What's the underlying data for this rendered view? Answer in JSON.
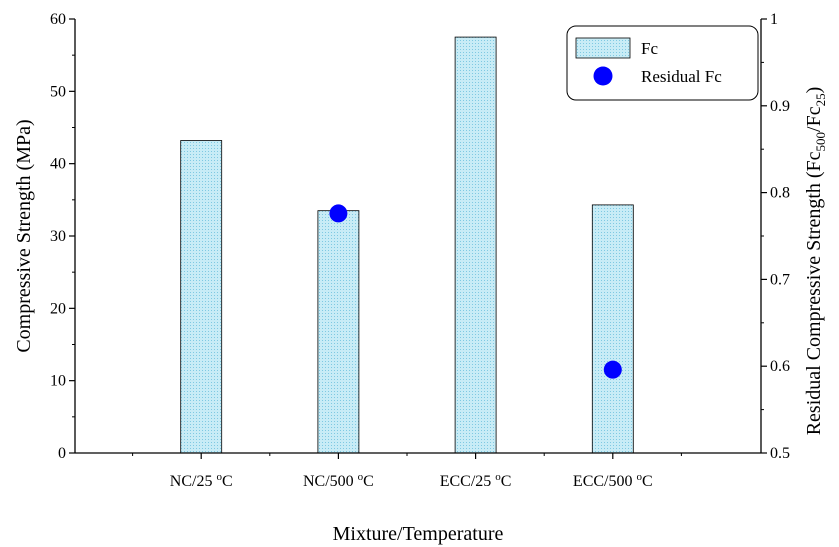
{
  "chart_data": {
    "type": "bar",
    "categories": [
      {
        "base": "NC/25 ",
        "sup": "o",
        "tail": "C"
      },
      {
        "base": "NC/500 ",
        "sup": "o",
        "tail": "C"
      },
      {
        "base": "ECC/25 ",
        "sup": "o",
        "tail": "C"
      },
      {
        "base": "ECC/500 ",
        "sup": "o",
        "tail": "C"
      }
    ],
    "series": [
      {
        "name": "Fc",
        "axis": "left",
        "kind": "bar",
        "values": [
          43.2,
          33.5,
          57.5,
          34.3
        ]
      },
      {
        "name": "Residual Fc",
        "axis": "right",
        "kind": "scatter",
        "values": [
          null,
          0.776,
          null,
          0.596
        ]
      }
    ],
    "xlabel": "Mixture/Temperature",
    "ylabel": "Compressive Strength (MPa)",
    "y2label": {
      "pre": "Residual Compressive Strength (Fc",
      "sub1": "500",
      "mid": "/Fc",
      "sub2": "25",
      "post": ")"
    },
    "ylim": [
      0,
      60
    ],
    "yticks": [
      0,
      10,
      20,
      30,
      40,
      50,
      60
    ],
    "y2lim": [
      0.5,
      1.0
    ],
    "y2ticks": [
      "0.5",
      "0.6",
      "0.7",
      "0.8",
      "0.9",
      "1"
    ],
    "legend_position": "top-right",
    "grid": false,
    "colors": {
      "bar_fill": "#c8ecf6",
      "bar_dot": "#7fc9e2",
      "marker": "#0000ff",
      "axis": "#000000"
    }
  }
}
